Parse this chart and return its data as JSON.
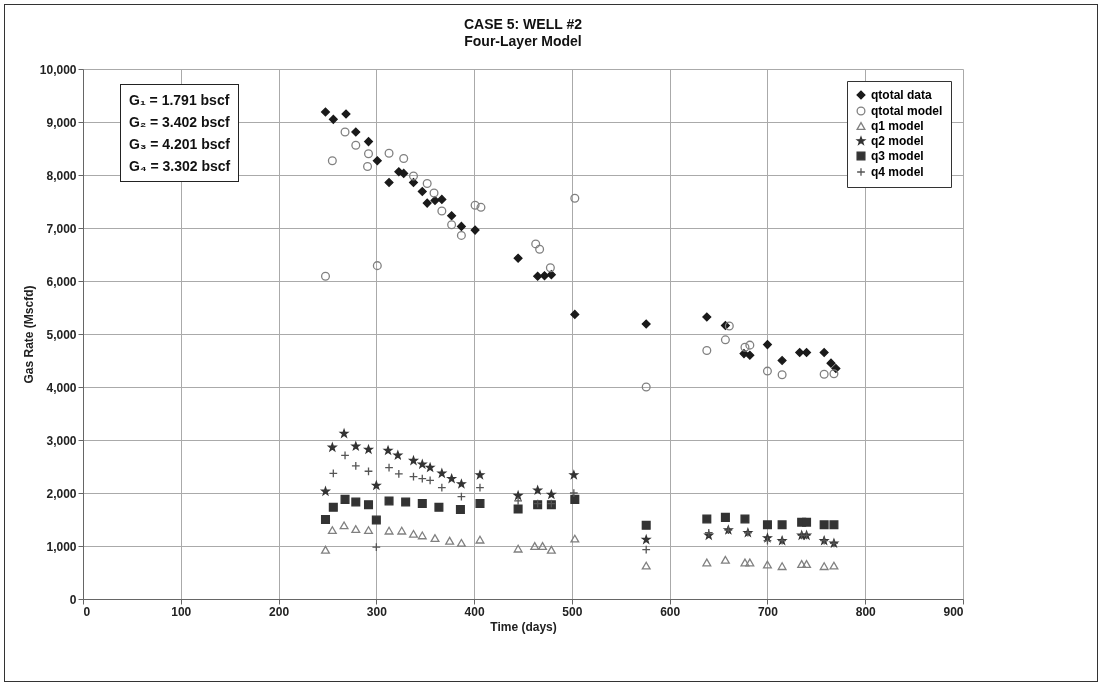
{
  "chart_data": {
    "type": "scatter",
    "title": "CASE 5: WELL #2",
    "subtitle": "Four-Layer Model",
    "xlabel": "Time (days)",
    "ylabel": "Gas Rate (Mscfd)",
    "xlim": [
      0,
      900
    ],
    "xticks": [
      0,
      100,
      200,
      300,
      400,
      500,
      600,
      700,
      800,
      900
    ],
    "ylim": [
      0,
      10000
    ],
    "yticks": [
      0,
      {
        "value": 1000,
        "label": "1,000"
      },
      {
        "value": 2000,
        "label": "2,000"
      },
      {
        "value": 3000,
        "label": "3,000"
      },
      {
        "value": 4000,
        "label": "4,000"
      },
      {
        "value": 5000,
        "label": "5,000"
      },
      {
        "value": 6000,
        "label": "6,000"
      },
      {
        "value": 7000,
        "label": "7,000"
      },
      {
        "value": 8000,
        "label": "8,000"
      },
      {
        "value": 9000,
        "label": "9,000"
      },
      {
        "value": 10000,
        "label": "10,000"
      }
    ],
    "grid": true,
    "legend": "top right",
    "annotations": [
      "G₁ = 1.791 bscf",
      "G₂ = 3.402 bscf",
      "G₃ = 4.201 bscf",
      "G₄ = 3.302 bscf"
    ],
    "series": [
      {
        "name": "qtotal data",
        "color": "#1a1a1a",
        "marker": "diamond",
        "x": [
          248,
          256,
          269,
          279,
          292,
          301,
          313,
          323,
          328,
          338,
          347,
          352,
          360,
          367,
          377,
          387,
          401,
          445,
          465,
          472,
          479,
          503,
          576,
          638,
          657,
          676,
          682,
          700,
          715,
          733,
          740,
          758,
          765,
          770
        ],
        "values": [
          9190,
          9050,
          9150,
          8810,
          8630,
          8270,
          7860,
          8060,
          8030,
          7860,
          7690,
          7470,
          7520,
          7540,
          7230,
          7030,
          6960,
          6430,
          6090,
          6100,
          6120,
          5370,
          5190,
          5320,
          5160,
          4630,
          4600,
          4800,
          4500,
          4650,
          4650,
          4650,
          4450,
          4350
        ]
      },
      {
        "name": "qtotal model",
        "color": "#808080",
        "marker": "circle",
        "x": [
          248,
          255,
          268,
          279,
          291,
          292,
          301,
          313,
          328,
          338,
          352,
          359,
          367,
          377,
          387,
          401,
          407,
          463,
          467,
          478,
          503,
          576,
          638,
          657,
          661,
          677,
          682,
          700,
          715,
          758,
          768
        ],
        "values": [
          6090,
          8270,
          8810,
          8560,
          8160,
          8400,
          6290,
          8410,
          8310,
          7980,
          7840,
          7660,
          7320,
          7060,
          6860,
          7430,
          7390,
          6700,
          6600,
          6250,
          7560,
          4000,
          4690,
          4890,
          5150,
          4750,
          4790,
          4300,
          4230,
          4240,
          4250
        ]
      },
      {
        "name": "q1 model",
        "color": "#808080",
        "marker": "triangle",
        "x": [
          248,
          255,
          267,
          279,
          292,
          313,
          326,
          338,
          347,
          360,
          375,
          387,
          406,
          445,
          462,
          470,
          479,
          503,
          576,
          638,
          657,
          677,
          682,
          700,
          715,
          735,
          740,
          758,
          768
        ],
        "values": [
          930,
          1300,
          1390,
          1320,
          1300,
          1290,
          1290,
          1230,
          1200,
          1150,
          1100,
          1060,
          1120,
          950,
          1000,
          1000,
          930,
          1140,
          630,
          690,
          740,
          690,
          690,
          650,
          620,
          660,
          660,
          620,
          630
        ]
      },
      {
        "name": "q2 model",
        "color": "#333333",
        "marker": "star",
        "x": [
          248,
          255,
          267,
          279,
          292,
          300,
          312,
          322,
          338,
          347,
          355,
          367,
          377,
          387,
          406,
          445,
          465,
          479,
          502,
          576,
          640,
          660,
          680,
          700,
          715,
          735,
          740,
          758,
          768
        ],
        "values": [
          2030,
          2860,
          3120,
          2880,
          2820,
          2140,
          2800,
          2710,
          2610,
          2540,
          2480,
          2370,
          2270,
          2170,
          2340,
          1950,
          2050,
          1970,
          2340,
          1120,
          1200,
          1300,
          1250,
          1150,
          1100,
          1200,
          1200,
          1100,
          1050
        ]
      },
      {
        "name": "q3 model",
        "color": "#333333",
        "marker": "square",
        "x": [
          248,
          256,
          268,
          279,
          292,
          300,
          313,
          330,
          347,
          364,
          386,
          406,
          445,
          465,
          479,
          503,
          576,
          638,
          657,
          677,
          700,
          715,
          735,
          740,
          758,
          768
        ],
        "values": [
          1500,
          1730,
          1880,
          1830,
          1780,
          1490,
          1850,
          1830,
          1800,
          1730,
          1690,
          1800,
          1700,
          1780,
          1780,
          1880,
          1390,
          1510,
          1540,
          1510,
          1400,
          1400,
          1450,
          1450,
          1400,
          1400
        ]
      },
      {
        "name": "q4 model",
        "color": "#555555",
        "marker": "cross",
        "x": [
          256,
          268,
          279,
          292,
          300,
          313,
          323,
          338,
          347,
          355,
          367,
          387,
          406,
          445,
          465,
          479,
          502,
          576,
          640,
          660,
          680,
          700,
          715,
          735,
          740,
          758,
          768
        ],
        "values": [
          2370,
          2710,
          2510,
          2410,
          980,
          2480,
          2360,
          2310,
          2270,
          2240,
          2100,
          1930,
          2100,
          1850,
          1800,
          1800,
          2000,
          930,
          1250,
          1300,
          1250,
          1100,
          1100,
          1200,
          1200,
          1100,
          1050
        ]
      }
    ]
  }
}
